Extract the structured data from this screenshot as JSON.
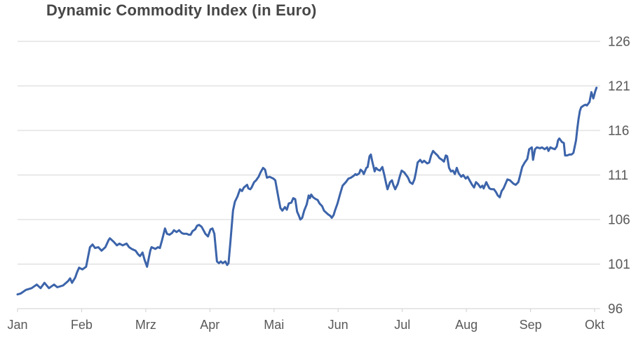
{
  "chart_data": {
    "type": "line",
    "title": "Dynamic Commodity Index (in Euro)",
    "xlabel": "",
    "ylabel": "",
    "x_categories": [
      "Jan",
      "Feb",
      "Mrz",
      "Apr",
      "Mai",
      "Jun",
      "Jul",
      "Aug",
      "Sep",
      "Okt"
    ],
    "y_ticks": [
      96,
      101,
      106,
      111,
      116,
      121,
      126
    ],
    "ylim": [
      96,
      126
    ],
    "grid": "horizontal",
    "legend": "none",
    "y_axis_side": "right",
    "line_color": "#3c64aa",
    "series_name": "Dynamic Commodity Index",
    "x_unit": "month index (0 = Jan tick, 9 = Okt tick)",
    "points": [
      [
        0.0,
        97.6
      ],
      [
        0.05,
        97.7
      ],
      [
        0.13,
        98.1
      ],
      [
        0.22,
        98.3
      ],
      [
        0.3,
        98.7
      ],
      [
        0.36,
        98.3
      ],
      [
        0.42,
        98.9
      ],
      [
        0.49,
        98.3
      ],
      [
        0.57,
        98.7
      ],
      [
        0.62,
        98.4
      ],
      [
        0.71,
        98.6
      ],
      [
        0.79,
        99.1
      ],
      [
        0.82,
        99.4
      ],
      [
        0.85,
        98.9
      ],
      [
        0.9,
        99.5
      ],
      [
        0.93,
        100.1
      ],
      [
        0.96,
        100.6
      ],
      [
        1.01,
        100.4
      ],
      [
        1.07,
        100.7
      ],
      [
        1.13,
        102.9
      ],
      [
        1.17,
        103.2
      ],
      [
        1.21,
        102.8
      ],
      [
        1.26,
        102.9
      ],
      [
        1.31,
        102.5
      ],
      [
        1.37,
        102.9
      ],
      [
        1.42,
        103.7
      ],
      [
        1.44,
        103.9
      ],
      [
        1.5,
        103.5
      ],
      [
        1.55,
        103.1
      ],
      [
        1.59,
        103.3
      ],
      [
        1.64,
        103.1
      ],
      [
        1.7,
        103.3
      ],
      [
        1.74,
        102.9
      ],
      [
        1.78,
        102.7
      ],
      [
        1.84,
        102.5
      ],
      [
        1.88,
        102.1
      ],
      [
        1.91,
        101.9
      ],
      [
        1.95,
        102.3
      ],
      [
        1.98,
        101.5
      ],
      [
        2.02,
        100.7
      ],
      [
        2.07,
        102.5
      ],
      [
        2.09,
        102.9
      ],
      [
        2.12,
        102.8
      ],
      [
        2.15,
        102.7
      ],
      [
        2.19,
        102.9
      ],
      [
        2.22,
        102.8
      ],
      [
        2.25,
        103.6
      ],
      [
        2.3,
        105.0
      ],
      [
        2.33,
        104.4
      ],
      [
        2.37,
        104.3
      ],
      [
        2.41,
        104.5
      ],
      [
        2.44,
        104.8
      ],
      [
        2.48,
        104.6
      ],
      [
        2.52,
        104.8
      ],
      [
        2.56,
        104.5
      ],
      [
        2.59,
        104.4
      ],
      [
        2.64,
        104.4
      ],
      [
        2.67,
        104.3
      ],
      [
        2.7,
        104.3
      ],
      [
        2.73,
        104.7
      ],
      [
        2.77,
        104.9
      ],
      [
        2.8,
        105.3
      ],
      [
        2.83,
        105.4
      ],
      [
        2.87,
        105.2
      ],
      [
        2.9,
        104.8
      ],
      [
        2.93,
        104.4
      ],
      [
        2.97,
        104.1
      ],
      [
        3.01,
        104.9
      ],
      [
        3.04,
        105.0
      ],
      [
        3.07,
        104.4
      ],
      [
        3.11,
        101.3
      ],
      [
        3.14,
        101.1
      ],
      [
        3.17,
        101.3
      ],
      [
        3.2,
        101.1
      ],
      [
        3.24,
        101.3
      ],
      [
        3.27,
        100.9
      ],
      [
        3.29,
        101.1
      ],
      [
        3.32,
        103.5
      ],
      [
        3.36,
        107.0
      ],
      [
        3.39,
        108.0
      ],
      [
        3.43,
        108.6
      ],
      [
        3.47,
        109.4
      ],
      [
        3.5,
        109.2
      ],
      [
        3.53,
        109.6
      ],
      [
        3.58,
        109.9
      ],
      [
        3.6,
        109.5
      ],
      [
        3.63,
        109.4
      ],
      [
        3.65,
        109.6
      ],
      [
        3.69,
        110.2
      ],
      [
        3.72,
        110.4
      ],
      [
        3.76,
        110.8
      ],
      [
        3.79,
        111.3
      ],
      [
        3.83,
        111.8
      ],
      [
        3.86,
        111.6
      ],
      [
        3.89,
        110.7
      ],
      [
        3.93,
        110.8
      ],
      [
        3.96,
        110.7
      ],
      [
        3.99,
        110.6
      ],
      [
        4.02,
        110.4
      ],
      [
        4.07,
        108.4
      ],
      [
        4.1,
        107.3
      ],
      [
        4.13,
        107.0
      ],
      [
        4.17,
        107.4
      ],
      [
        4.2,
        107.1
      ],
      [
        4.23,
        107.8
      ],
      [
        4.27,
        107.9
      ],
      [
        4.3,
        108.4
      ],
      [
        4.33,
        108.3
      ],
      [
        4.36,
        106.9
      ],
      [
        4.39,
        106.4
      ],
      [
        4.41,
        106.0
      ],
      [
        4.44,
        106.2
      ],
      [
        4.47,
        107.0
      ],
      [
        4.51,
        107.7
      ],
      [
        4.54,
        108.7
      ],
      [
        4.56,
        108.4
      ],
      [
        4.58,
        108.8
      ],
      [
        4.61,
        108.5
      ],
      [
        4.65,
        108.3
      ],
      [
        4.68,
        108.2
      ],
      [
        4.71,
        107.8
      ],
      [
        4.75,
        107.5
      ],
      [
        4.78,
        107.0
      ],
      [
        4.81,
        106.8
      ],
      [
        4.84,
        106.6
      ],
      [
        4.88,
        106.4
      ],
      [
        4.9,
        106.2
      ],
      [
        4.93,
        106.5
      ],
      [
        4.95,
        107.0
      ],
      [
        4.99,
        107.8
      ],
      [
        5.02,
        108.6
      ],
      [
        5.04,
        109.1
      ],
      [
        5.07,
        109.8
      ],
      [
        5.12,
        110.2
      ],
      [
        5.16,
        110.6
      ],
      [
        5.2,
        110.7
      ],
      [
        5.24,
        110.9
      ],
      [
        5.27,
        111.1
      ],
      [
        5.29,
        111.0
      ],
      [
        5.33,
        111.2
      ],
      [
        5.35,
        111.6
      ],
      [
        5.38,
        111.4
      ],
      [
        5.4,
        111.1
      ],
      [
        5.44,
        111.8
      ],
      [
        5.46,
        111.9
      ],
      [
        5.49,
        113.1
      ],
      [
        5.51,
        113.3
      ],
      [
        5.53,
        112.6
      ],
      [
        5.57,
        111.4
      ],
      [
        5.59,
        111.8
      ],
      [
        5.62,
        111.6
      ],
      [
        5.65,
        111.5
      ],
      [
        5.69,
        111.9
      ],
      [
        5.72,
        111.0
      ],
      [
        5.75,
        110.0
      ],
      [
        5.77,
        109.4
      ],
      [
        5.81,
        110.2
      ],
      [
        5.84,
        110.4
      ],
      [
        5.86,
        109.9
      ],
      [
        5.89,
        109.4
      ],
      [
        5.93,
        110.0
      ],
      [
        5.96,
        110.8
      ],
      [
        5.99,
        111.5
      ],
      [
        6.03,
        111.3
      ],
      [
        6.06,
        111.0
      ],
      [
        6.09,
        110.7
      ],
      [
        6.12,
        110.2
      ],
      [
        6.16,
        110.0
      ],
      [
        6.19,
        110.5
      ],
      [
        6.21,
        111.2
      ],
      [
        6.24,
        112.4
      ],
      [
        6.28,
        112.7
      ],
      [
        6.31,
        112.4
      ],
      [
        6.34,
        112.6
      ],
      [
        6.39,
        112.3
      ],
      [
        6.42,
        112.4
      ],
      [
        6.45,
        113.2
      ],
      [
        6.48,
        113.7
      ],
      [
        6.52,
        113.4
      ],
      [
        6.55,
        113.2
      ],
      [
        6.58,
        112.9
      ],
      [
        6.62,
        112.7
      ],
      [
        6.65,
        112.5
      ],
      [
        6.68,
        113.2
      ],
      [
        6.7,
        113.1
      ],
      [
        6.73,
        111.8
      ],
      [
        6.76,
        111.4
      ],
      [
        6.79,
        111.5
      ],
      [
        6.82,
        111.1
      ],
      [
        6.85,
        111.8
      ],
      [
        6.88,
        111.2
      ],
      [
        6.92,
        110.8
      ],
      [
        6.95,
        111.0
      ],
      [
        6.99,
        110.6
      ],
      [
        7.02,
        110.8
      ],
      [
        7.05,
        110.4
      ],
      [
        7.09,
        109.9
      ],
      [
        7.12,
        109.6
      ],
      [
        7.15,
        110.2
      ],
      [
        7.18,
        110.0
      ],
      [
        7.22,
        109.6
      ],
      [
        7.25,
        109.8
      ],
      [
        7.27,
        109.5
      ],
      [
        7.31,
        110.2
      ],
      [
        7.33,
        109.9
      ],
      [
        7.36,
        109.5
      ],
      [
        7.39,
        109.4
      ],
      [
        7.43,
        109.4
      ],
      [
        7.46,
        109.1
      ],
      [
        7.49,
        108.7
      ],
      [
        7.52,
        108.5
      ],
      [
        7.55,
        109.2
      ],
      [
        7.58,
        109.5
      ],
      [
        7.61,
        110.0
      ],
      [
        7.64,
        110.5
      ],
      [
        7.68,
        110.4
      ],
      [
        7.71,
        110.2
      ],
      [
        7.74,
        110.0
      ],
      [
        7.77,
        109.9
      ],
      [
        7.81,
        110.2
      ],
      [
        7.84,
        111.0
      ],
      [
        7.87,
        111.9
      ],
      [
        7.91,
        112.4
      ],
      [
        7.95,
        112.8
      ],
      [
        7.98,
        113.9
      ],
      [
        8.02,
        114.1
      ],
      [
        8.04,
        112.7
      ],
      [
        8.07,
        113.9
      ],
      [
        8.1,
        114.1
      ],
      [
        8.15,
        114.0
      ],
      [
        8.18,
        114.1
      ],
      [
        8.22,
        113.9
      ],
      [
        8.26,
        114.1
      ],
      [
        8.28,
        113.7
      ],
      [
        8.31,
        114.1
      ],
      [
        8.34,
        114.0
      ],
      [
        8.38,
        113.9
      ],
      [
        8.41,
        114.2
      ],
      [
        8.43,
        114.9
      ],
      [
        8.45,
        115.1
      ],
      [
        8.49,
        114.7
      ],
      [
        8.52,
        114.6
      ],
      [
        8.54,
        113.2
      ],
      [
        8.57,
        113.2
      ],
      [
        8.61,
        113.3
      ],
      [
        8.64,
        113.3
      ],
      [
        8.67,
        113.5
      ],
      [
        8.71,
        114.9
      ],
      [
        8.73,
        116.2
      ],
      [
        8.75,
        117.3
      ],
      [
        8.77,
        118.2
      ],
      [
        8.79,
        118.6
      ],
      [
        8.83,
        118.8
      ],
      [
        8.86,
        118.9
      ],
      [
        8.88,
        118.8
      ],
      [
        8.9,
        119.0
      ],
      [
        8.92,
        119.2
      ],
      [
        8.95,
        120.3
      ],
      [
        8.98,
        119.6
      ],
      [
        9.01,
        120.4
      ],
      [
        9.03,
        120.8
      ]
    ]
  }
}
